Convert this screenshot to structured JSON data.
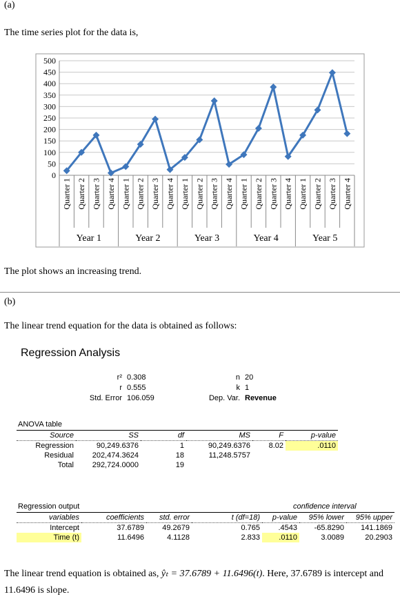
{
  "part_a": {
    "label": "(a)",
    "intro": "The time series plot for the data is,",
    "conclusion": "The plot shows an increasing trend."
  },
  "chart_data": {
    "type": "line",
    "categories": [
      "Quarter 1",
      "Quarter 2",
      "Quarter 3",
      "Quarter 4",
      "Quarter 1",
      "Quarter 2",
      "Quarter 3",
      "Quarter 4",
      "Quarter 1",
      "Quarter 2",
      "Quarter 3",
      "Quarter 4",
      "Quarter 1",
      "Quarter 2",
      "Quarter 3",
      "Quarter 4",
      "Quarter 1",
      "Quarter 2",
      "Quarter 3",
      "Quarter 4"
    ],
    "groups": [
      "Year 1",
      "Year 2",
      "Year 3",
      "Year 4",
      "Year 5"
    ],
    "values": [
      20,
      100,
      175,
      10,
      38,
      135,
      245,
      25,
      78,
      155,
      325,
      48,
      90,
      205,
      385,
      82,
      175,
      285,
      448,
      182
    ],
    "color": "#3f77bc",
    "ylim": [
      0,
      500
    ],
    "yticks": [
      0,
      50,
      100,
      150,
      200,
      250,
      300,
      350,
      400,
      450,
      500
    ],
    "grid": true
  },
  "part_b": {
    "label": "(b)",
    "intro": "The linear trend equation for the data is obtained as follows:"
  },
  "regression": {
    "title": "Regression Analysis",
    "stats_left": [
      [
        "r²",
        "0.308"
      ],
      [
        "r",
        "0.555"
      ],
      [
        "Std. Error",
        "106.059"
      ]
    ],
    "stats_right": [
      [
        "n",
        "20"
      ],
      [
        "k",
        "1"
      ],
      [
        "Dep. Var.",
        "Revenue"
      ]
    ]
  },
  "anova": {
    "title": "ANOVA table",
    "header": [
      "Source",
      "SS",
      "df",
      "MS",
      "F",
      "p-value"
    ],
    "rows": [
      [
        "Regression",
        "90,249.6376",
        "1",
        "90,249.6376",
        "8.02",
        ".0110"
      ],
      [
        "Residual",
        "202,474.3624",
        "18",
        "11,248.5757",
        "",
        ""
      ],
      [
        "Total",
        "292,724.0000",
        "19",
        "",
        "",
        ""
      ]
    ]
  },
  "output": {
    "title": "Regression output",
    "ci_label": "confidence interval",
    "header": [
      "variables",
      "coefficients",
      "std. error",
      "t (df=18)",
      "p-value",
      "95% lower",
      "95% upper"
    ],
    "rows": [
      [
        "Intercept",
        "37.6789",
        "49.2679",
        "0.765",
        ".4543",
        "-65.8290",
        "141.1869"
      ],
      [
        "Time (t)",
        "11.6496",
        "4.1128",
        "2.833",
        ".0110",
        "3.0089",
        "20.2903"
      ]
    ]
  },
  "conclusion": {
    "before": "The linear trend equation is obtained as,",
    "equation": "ŷₜ = 37.6789 + 11.6496(t)",
    "after": ". Here, 37.6789 is intercept and 11.6496 is slope."
  }
}
